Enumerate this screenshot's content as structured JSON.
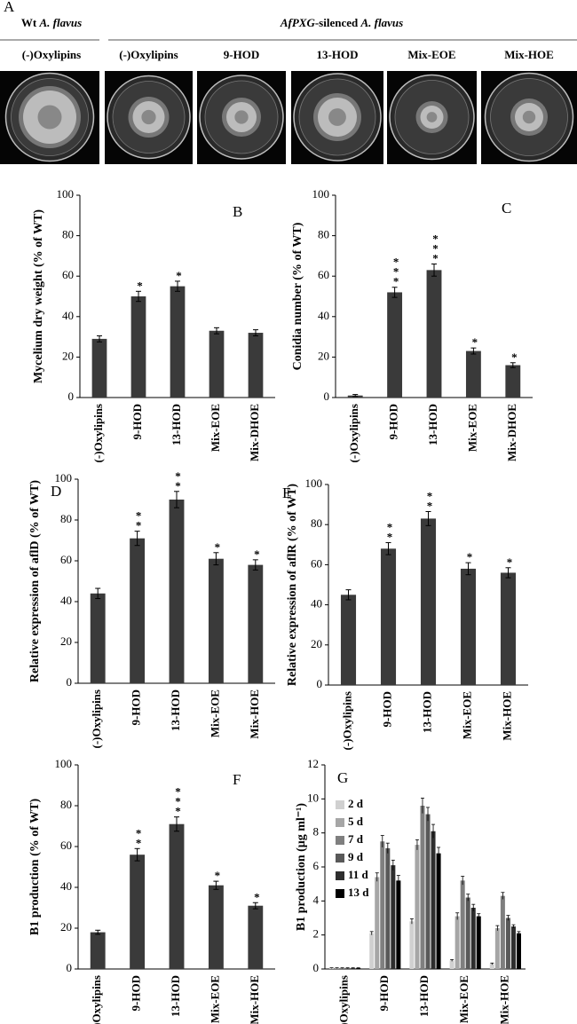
{
  "panel_a": {
    "letter": "A",
    "wt_label": [
      "Wt",
      "A. flavus"
    ],
    "silenced_label": [
      "AfPXG",
      "-silenced",
      "A. flavus"
    ],
    "wt_condition": "(-)Oxylipins",
    "treatments": [
      "(-)Oxylipins",
      "9-HOD",
      "13-HOD",
      "Mix-EOE",
      "Mix-HOE"
    ]
  },
  "chart_data": [
    {
      "type": "bar",
      "panel_label": "B",
      "y_label": "Mycelium dry weight (% of WT)",
      "categories": [
        "(-)Oxylipins",
        "9-HOD",
        "13-HOD",
        "Mix-EOE",
        "Mix-DHOE"
      ],
      "values": [
        29,
        50,
        55,
        33,
        32
      ],
      "errors": [
        1.5,
        2.5,
        2.5,
        1.5,
        1.5
      ],
      "annotations": [
        null,
        "*",
        "*",
        null,
        null
      ],
      "color": "#3a3a3a",
      "ylim": [
        0,
        100
      ],
      "yticks": [
        0,
        20,
        40,
        60,
        80,
        100
      ]
    },
    {
      "type": "bar",
      "panel_label": "C",
      "y_label": "Conidia number (% of WT)",
      "categories": [
        "(-)Oxylipins",
        "9-HOD",
        "13-HOD",
        "Mix-EOE",
        "Mix-DHOE"
      ],
      "values": [
        1,
        52,
        63,
        23,
        16
      ],
      "errors": [
        0.5,
        2.5,
        3,
        1.5,
        1.2
      ],
      "annotations": [
        null,
        "***",
        "***",
        "*",
        "*"
      ],
      "color": "#3a3a3a",
      "ylim": [
        0,
        100
      ],
      "yticks": [
        0,
        20,
        40,
        60,
        80,
        100
      ]
    },
    {
      "type": "bar",
      "panel_label": "D",
      "y_label": "Relative expression of aflD (% of WT)",
      "categories": [
        "(-)Oxylipins",
        "9-HOD",
        "13-HOD",
        "Mix-EOE",
        "Mix-HOE"
      ],
      "values": [
        44,
        71,
        90,
        61,
        58
      ],
      "errors": [
        2.5,
        3.5,
        4,
        3,
        2.5
      ],
      "annotations": [
        null,
        "**",
        "**",
        "*",
        "*"
      ],
      "color": "#3a3a3a",
      "ylim": [
        0,
        100
      ],
      "yticks": [
        0,
        20,
        40,
        60,
        80,
        100
      ]
    },
    {
      "type": "bar",
      "panel_label": "E",
      "y_label": "Relative expression of aflR (% of WT)",
      "categories": [
        "(-)Oxylipins",
        "9-HOD",
        "13-HOD",
        "Mix-EOE",
        "Mix-HOE"
      ],
      "values": [
        45,
        68,
        83,
        58,
        56
      ],
      "errors": [
        2.5,
        3,
        3.5,
        3,
        2.5
      ],
      "annotations": [
        null,
        "**",
        "**",
        "*",
        "*"
      ],
      "color": "#3a3a3a",
      "ylim": [
        0,
        100
      ],
      "yticks": [
        0,
        20,
        40,
        60,
        80,
        100
      ]
    },
    {
      "type": "bar",
      "panel_label": "F",
      "y_label": "B1 production (% of WT)",
      "categories": [
        "(-)Oxylipins",
        "9-HOD",
        "13-HOD",
        "Mix-EOE",
        "Mix-HOE"
      ],
      "values": [
        18,
        56,
        71,
        41,
        31
      ],
      "errors": [
        1,
        3,
        3.5,
        2,
        1.5
      ],
      "annotations": [
        null,
        "**",
        "***",
        "*",
        "*"
      ],
      "color": "#3a3a3a",
      "ylim": [
        0,
        100
      ],
      "yticks": [
        0,
        20,
        40,
        60,
        80,
        100
      ]
    },
    {
      "type": "grouped_bar",
      "panel_label": "G",
      "y_label": "B1 production (μg ml⁻¹)",
      "categories": [
        "(-)Oxylipins",
        "9-HOD",
        "13-HOD",
        "Mix-EOE",
        "Mix-HOE"
      ],
      "legend": "upper left",
      "ylim": [
        0,
        12
      ],
      "yticks": [
        0,
        2,
        4,
        6,
        8,
        10,
        12
      ],
      "series": [
        {
          "name": "2 d",
          "color": "#d0d0d0",
          "values": [
            0.05,
            2.1,
            2.8,
            0.5,
            0.3
          ],
          "errors": [
            0.02,
            0.1,
            0.15,
            0.05,
            0.05
          ]
        },
        {
          "name": "5 d",
          "color": "#a6a6a6",
          "values": [
            0.05,
            5.4,
            7.3,
            3.1,
            2.4
          ],
          "errors": [
            0.02,
            0.25,
            0.3,
            0.2,
            0.15
          ]
        },
        {
          "name": "7 d",
          "color": "#7f7f7f",
          "values": [
            0.05,
            7.5,
            9.6,
            5.2,
            4.3
          ],
          "errors": [
            0.02,
            0.35,
            0.45,
            0.25,
            0.2
          ]
        },
        {
          "name": "9 d",
          "color": "#595959",
          "values": [
            0.05,
            7.1,
            9.1,
            4.2,
            3.0
          ],
          "errors": [
            0.02,
            0.3,
            0.4,
            0.2,
            0.15
          ]
        },
        {
          "name": "11 d",
          "color": "#2e2e2e",
          "values": [
            0.05,
            6.1,
            8.1,
            3.6,
            2.5
          ],
          "errors": [
            0.02,
            0.3,
            0.4,
            0.2,
            0.1
          ]
        },
        {
          "name": "13 d",
          "color": "#000000",
          "values": [
            0.05,
            5.2,
            6.8,
            3.1,
            2.1
          ],
          "errors": [
            0.02,
            0.3,
            0.35,
            0.15,
            0.1
          ]
        }
      ]
    }
  ]
}
